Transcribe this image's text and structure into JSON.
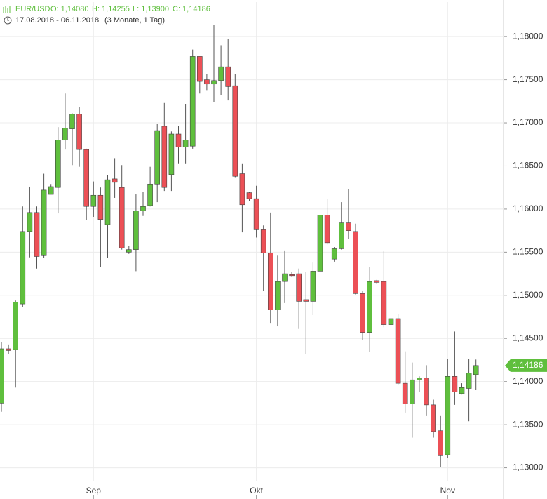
{
  "chart_data": {
    "type": "candlestick",
    "title": "EUR/USD",
    "quote": [
      "O: 1,14080",
      "H: 1,14255",
      "L: 1,13900",
      "C: 1,14186"
    ],
    "date_range": "17.08.2018 - 06.11.2018",
    "period": "(3 Monate, 1 Tag)",
    "categories": [
      null,
      null,
      null,
      null,
      null,
      null,
      null,
      null,
      null,
      null,
      null,
      null,
      null,
      "Sep",
      null,
      null,
      null,
      null,
      null,
      null,
      null,
      null,
      null,
      null,
      null,
      null,
      null,
      null,
      null,
      null,
      null,
      null,
      null,
      null,
      null,
      null,
      "Okt",
      null,
      null,
      null,
      null,
      null,
      null,
      null,
      null,
      null,
      null,
      null,
      null,
      null,
      null,
      null,
      null,
      null,
      null,
      null,
      null,
      null,
      null,
      null,
      null,
      null,
      null,
      "Nov",
      null,
      null,
      null,
      null
    ],
    "open": [
      1.1375,
      1.1438,
      1.1437,
      1.149,
      1.1574,
      1.1596,
      1.1546,
      1.1617,
      1.1625,
      1.168,
      1.1693,
      1.171,
      1.1669,
      1.1603,
      1.1616,
      1.1582,
      1.1635,
      1.1625,
      1.155,
      1.1553,
      1.1598,
      1.1604,
      1.1629,
      1.1696,
      1.164,
      1.1687,
      1.1672,
      1.1673,
      1.1777,
      1.175,
      1.1745,
      1.1749,
      1.1765,
      1.1743,
      1.1641,
      1.1619,
      1.1612,
      1.1576,
      1.1549,
      1.1483,
      1.1516,
      1.1524,
      1.1525,
      1.1495,
      1.1493,
      1.1528,
      1.1593,
      1.1542,
      1.1554,
      1.1584,
      1.1574,
      1.1502,
      1.1457,
      1.1517,
      1.1516,
      1.1466,
      1.1473,
      1.1398,
      1.1374,
      1.1402,
      1.1404,
      1.1373,
      1.1343,
      1.1315,
      1.1406,
      1.1386,
      1.1392,
      1.1408
    ],
    "high": [
      1.1446,
      1.1443,
      1.1494,
      1.1603,
      1.1626,
      1.1603,
      1.1641,
      1.1629,
      1.1695,
      1.1734,
      1.1711,
      1.1718,
      1.167,
      1.1632,
      1.1625,
      1.1639,
      1.1659,
      1.1651,
      1.1557,
      1.1617,
      1.162,
      1.1649,
      1.1699,
      1.1723,
      1.169,
      1.1696,
      1.1722,
      1.1785,
      1.1777,
      1.1757,
      1.1814,
      1.179,
      1.1797,
      1.1757,
      1.1653,
      1.162,
      1.1627,
      1.1581,
      1.1596,
      1.1546,
      1.1552,
      1.1527,
      1.1531,
      1.1527,
      1.1538,
      1.1603,
      1.1612,
      1.1556,
      1.1608,
      1.1623,
      1.1583,
      1.1505,
      1.1533,
      1.1518,
      1.1552,
      1.1497,
      1.1478,
      1.1435,
      1.1422,
      1.1406,
      1.1419,
      1.1379,
      1.136,
      1.1426,
      1.1458,
      1.1398,
      1.1426,
      1.14255
    ],
    "low": [
      1.1365,
      1.1432,
      1.1393,
      1.1486,
      1.1544,
      1.1531,
      1.1543,
      1.1617,
      1.1595,
      1.1669,
      1.1651,
      1.1649,
      1.1587,
      1.1591,
      1.1533,
      1.1543,
      1.1613,
      1.1553,
      1.1548,
      1.1528,
      1.1592,
      1.1603,
      1.1608,
      1.1621,
      1.1621,
      1.1653,
      1.1653,
      1.167,
      1.1734,
      1.1738,
      1.1724,
      1.1732,
      1.1726,
      1.1637,
      1.1573,
      1.1609,
      1.1567,
      1.1505,
      1.1468,
      1.1464,
      1.1491,
      1.1522,
      1.1461,
      1.1432,
      1.1477,
      1.1527,
      1.1559,
      1.1539,
      1.1553,
      1.1565,
      1.1501,
      1.1448,
      1.1434,
      1.1513,
      1.1463,
      1.1439,
      1.1396,
      1.1364,
      1.1335,
      1.1388,
      1.136,
      1.1335,
      1.1301,
      1.1311,
      1.1373,
      1.1385,
      1.1354,
      1.139
    ],
    "close": [
      1.1438,
      1.1436,
      1.1492,
      1.1574,
      1.1596,
      1.1545,
      1.1622,
      1.1626,
      1.168,
      1.1694,
      1.171,
      1.1669,
      1.1603,
      1.1616,
      1.1588,
      1.1634,
      1.1631,
      1.1555,
      1.1553,
      1.1598,
      1.1603,
      1.1629,
      1.1691,
      1.1625,
      1.1687,
      1.1672,
      1.168,
      1.1777,
      1.1748,
      1.1745,
      1.1749,
      1.1765,
      1.1742,
      1.1638,
      1.1605,
      1.1612,
      1.1576,
      1.1549,
      1.1483,
      1.1516,
      1.1525,
      1.1523,
      1.1493,
      1.1493,
      1.1528,
      1.1593,
      1.1561,
      1.1554,
      1.1584,
      1.1575,
      1.1502,
      1.1457,
      1.1516,
      1.1515,
      1.1466,
      1.1473,
      1.1398,
      1.1374,
      1.1402,
      1.1404,
      1.1373,
      1.1342,
      1.1314,
      1.1406,
      1.1388,
      1.1393,
      1.141,
      1.14186
    ],
    "up_color": "#5fbf3d",
    "down_color": "#ec5056",
    "ylim": [
      1.1285,
      1.184
    ],
    "yticks": [
      {
        "value": 1.13,
        "label": "1,13000"
      },
      {
        "value": 1.135,
        "label": "1,13500"
      },
      {
        "value": 1.14,
        "label": "1,14000"
      },
      {
        "value": 1.145,
        "label": "1,14500"
      },
      {
        "value": 1.15,
        "label": "1,15000"
      },
      {
        "value": 1.155,
        "label": "1,15500"
      },
      {
        "value": 1.16,
        "label": "1,16000"
      },
      {
        "value": 1.165,
        "label": "1,16500"
      },
      {
        "value": 1.17,
        "label": "1,17000"
      },
      {
        "value": 1.175,
        "label": "1,17500"
      },
      {
        "value": 1.18,
        "label": "1,18000"
      }
    ],
    "last_price": {
      "value": 1.14186,
      "label": "1,14186"
    },
    "grid": true
  }
}
